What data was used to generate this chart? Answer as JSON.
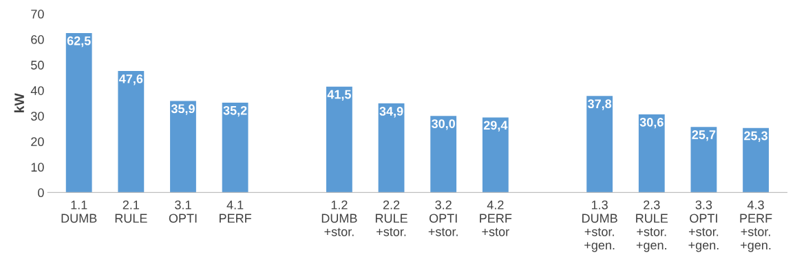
{
  "chart_data": {
    "type": "bar",
    "ylabel": "kW",
    "categories": [
      "1.1\nDUMB",
      "2.1\nRULE",
      "3.1\nOPTI",
      "4.1\nPERF",
      null,
      "1.2\nDUMB\n+stor.",
      "2.2\nRULE\n+stor.",
      "3.2\nOPTI\n+stor.",
      "4.2\nPERF\n+stor",
      null,
      "1.3\nDUMB\n+stor.\n+gen.",
      "2.3\nRULE\n+stor.\n+gen.",
      "3.3\nOPTI\n+stor.\n+gen.",
      "4.3\nPERF\n+stor.\n+gen."
    ],
    "values": [
      62.5,
      47.6,
      35.9,
      35.2,
      null,
      41.5,
      34.9,
      30.0,
      29.4,
      null,
      37.8,
      30.6,
      25.7,
      25.3
    ],
    "value_labels": [
      "62,5",
      "47,6",
      "35,9",
      "35,2",
      null,
      "41,5",
      "34,9",
      "30,0",
      "29,4",
      null,
      "37,8",
      "30,6",
      "25,7",
      "25,3"
    ],
    "color": "#5b9bd5",
    "ylim": [
      0,
      70
    ],
    "yticks": [
      0,
      10,
      20,
      30,
      40,
      50,
      60,
      70
    ],
    "grid": false,
    "legend": false
  }
}
